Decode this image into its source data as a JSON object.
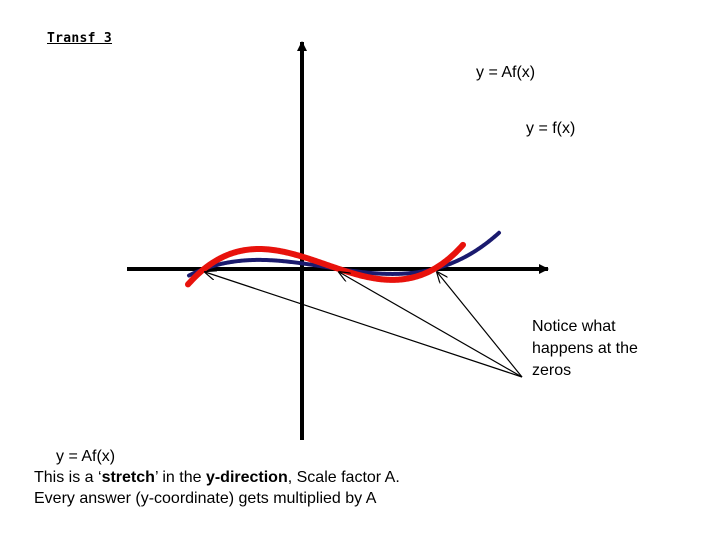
{
  "title": "Transf 3",
  "curve_labels": {
    "scaled": "y = Af(x)",
    "original": "y = f(x)"
  },
  "note": [
    "Notice what",
    "happens at the",
    "zeros"
  ],
  "explanation": {
    "line1": "y = Af(x)",
    "line2_pre": "This is a ‘",
    "line2_bold1": "stretch",
    "line2_mid": "’ in the ",
    "line2_bold2": "y-direction",
    "line2_post": ", Scale factor A.",
    "line3": "Every answer (y-coordinate) gets multiplied by A"
  },
  "colors": {
    "original_curve": "#1a1a6e",
    "scaled_curve": "#e8120c",
    "axes": "#000000"
  }
}
